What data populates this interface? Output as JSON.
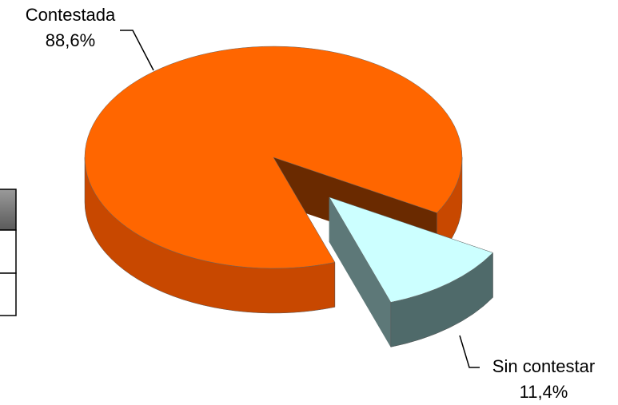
{
  "chart_data": {
    "type": "pie3d",
    "categories": [
      "Contestada",
      "Sin contestar"
    ],
    "values": [
      88.6,
      11.4
    ],
    "value_labels": [
      "88,6%",
      "11,4%"
    ],
    "colors": [
      "#ff6600",
      "#ccffff"
    ],
    "side_colors": [
      "#c84800",
      "#4f6a6a"
    ],
    "face_colors": [
      "#6a2a00",
      "#5d7878"
    ]
  }
}
